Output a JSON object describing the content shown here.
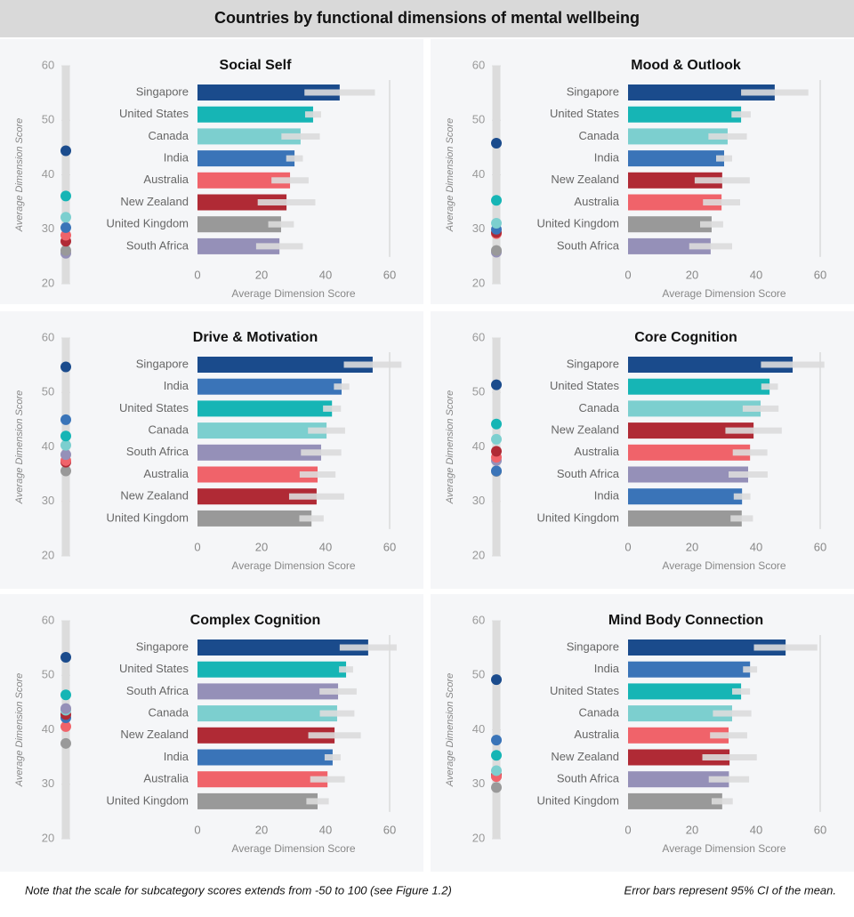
{
  "title": "Countries by functional dimensions of mental wellbeing",
  "notes": {
    "left": "Note that the scale for subcategory scores extends from -50 to 100 (see Figure 1.2)",
    "right": "Error bars represent 95% CI of the mean."
  },
  "chart_data": [
    {
      "type": "bar",
      "title": "Social Self",
      "categories": [
        "Singapore",
        "United States",
        "Canada",
        "India",
        "Australia",
        "New Zealand",
        "United Kingdom",
        "South Africa"
      ],
      "colors": [
        "#1a4b8c",
        "#16b5b5",
        "#7ccfcf",
        "#3a74b8",
        "#f0636a",
        "#b02a35",
        "#999999",
        "#9590b8"
      ],
      "values": [
        44.4,
        36.1,
        32.2,
        30.3,
        28.9,
        27.8,
        26.1,
        25.6
      ],
      "errors": [
        11,
        2.5,
        6,
        2.6,
        5.8,
        9,
        4,
        7.3
      ],
      "xlim": [
        0,
        60
      ],
      "xticks": [
        0,
        20,
        40,
        60
      ],
      "xlabel": "Average Dimension Score",
      "ylim": [
        20,
        60
      ],
      "yticks": [
        20,
        30,
        40,
        50,
        60
      ],
      "ylabel": "Average Dimension Score"
    },
    {
      "type": "bar",
      "title": "Mood & Outlook",
      "categories": [
        "Singapore",
        "United States",
        "Canada",
        "India",
        "New Zealand",
        "Australia",
        "United Kingdom",
        "South Africa"
      ],
      "colors": [
        "#1a4b8c",
        "#16b5b5",
        "#7ccfcf",
        "#3a74b8",
        "#b02a35",
        "#f0636a",
        "#999999",
        "#9590b8"
      ],
      "values": [
        45.8,
        35.3,
        31.1,
        30,
        29.4,
        29.2,
        26.1,
        25.8
      ],
      "errors": [
        10.5,
        3,
        6,
        2.5,
        8.6,
        5.8,
        3.6,
        6.7
      ],
      "xlim": [
        0,
        60
      ],
      "xticks": [
        0,
        20,
        40,
        60
      ],
      "xlabel": "Average Dimension Score",
      "ylim": [
        20,
        60
      ],
      "yticks": [
        20,
        30,
        40,
        50,
        60
      ],
      "ylabel": "Average Dimension Score"
    },
    {
      "type": "bar",
      "title": "Drive & Motivation",
      "categories": [
        "Singapore",
        "India",
        "United States",
        "Canada",
        "South Africa",
        "Australia",
        "New Zealand",
        "United Kingdom"
      ],
      "colors": [
        "#1a4b8c",
        "#3a74b8",
        "#16b5b5",
        "#7ccfcf",
        "#9590b8",
        "#f0636a",
        "#b02a35",
        "#999999"
      ],
      "values": [
        54.7,
        45,
        42,
        40.3,
        38.6,
        37.5,
        37.2,
        35.6
      ],
      "errors": [
        9,
        2.4,
        2.8,
        5.8,
        6.3,
        5.6,
        8.6,
        3.8
      ],
      "xlim": [
        0,
        60
      ],
      "xticks": [
        0,
        20,
        40,
        60
      ],
      "xlabel": "Average Dimension Score",
      "ylim": [
        20,
        60
      ],
      "yticks": [
        20,
        30,
        40,
        50,
        60
      ],
      "ylabel": "Average Dimension Score"
    },
    {
      "type": "bar",
      "title": "Core Cognition",
      "categories": [
        "Singapore",
        "United States",
        "Canada",
        "New Zealand",
        "Australia",
        "South Africa",
        "India",
        "United Kingdom"
      ],
      "colors": [
        "#1a4b8c",
        "#16b5b5",
        "#7ccfcf",
        "#b02a35",
        "#f0636a",
        "#9590b8",
        "#3a74b8",
        "#999999"
      ],
      "values": [
        51.4,
        44.2,
        41.4,
        39.2,
        38.1,
        37.5,
        35.6,
        35.5
      ],
      "errors": [
        9.9,
        2.6,
        5.6,
        8.8,
        5.4,
        6.1,
        2.6,
        3.5
      ],
      "xlim": [
        0,
        60
      ],
      "xticks": [
        0,
        20,
        40,
        60
      ],
      "xlabel": "Average Dimension Score",
      "ylim": [
        20,
        60
      ],
      "yticks": [
        20,
        30,
        40,
        50,
        60
      ],
      "ylabel": "Average Dimension Score"
    },
    {
      "type": "bar",
      "title": "Complex Cognition",
      "categories": [
        "Singapore",
        "United States",
        "South Africa",
        "Canada",
        "New Zealand",
        "India",
        "Australia",
        "United Kingdom"
      ],
      "colors": [
        "#1a4b8c",
        "#16b5b5",
        "#9590b8",
        "#7ccfcf",
        "#b02a35",
        "#3a74b8",
        "#f0636a",
        "#999999"
      ],
      "values": [
        53.3,
        46.4,
        43.9,
        43.6,
        42.8,
        42.2,
        40.6,
        37.5
      ],
      "errors": [
        8.9,
        2.2,
        5.8,
        5.4,
        8.2,
        2.5,
        5.4,
        3.5
      ],
      "xlim": [
        0,
        60
      ],
      "xticks": [
        0,
        20,
        40,
        60
      ],
      "xlabel": "Average Dimension Score",
      "ylim": [
        20,
        60
      ],
      "yticks": [
        20,
        30,
        40,
        50,
        60
      ],
      "ylabel": "Average Dimension Score"
    },
    {
      "type": "bar",
      "title": "Mind Body Connection",
      "categories": [
        "Singapore",
        "India",
        "United States",
        "Canada",
        "Australia",
        "New Zealand",
        "South Africa",
        "United Kingdom"
      ],
      "colors": [
        "#1a4b8c",
        "#3a74b8",
        "#16b5b5",
        "#7ccfcf",
        "#f0636a",
        "#b02a35",
        "#9590b8",
        "#999999"
      ],
      "values": [
        49.2,
        38.1,
        35.3,
        32.5,
        31.4,
        31.7,
        31.5,
        29.4
      ],
      "errors": [
        9.9,
        2.2,
        2.8,
        6,
        5.8,
        8.5,
        6.3,
        3.3
      ],
      "xlim": [
        0,
        60
      ],
      "xticks": [
        0,
        20,
        40,
        60
      ],
      "xlabel": "Average Dimension Score",
      "ylim": [
        20,
        60
      ],
      "yticks": [
        20,
        30,
        40,
        50,
        60
      ],
      "ylabel": "Average Dimension Score"
    }
  ]
}
